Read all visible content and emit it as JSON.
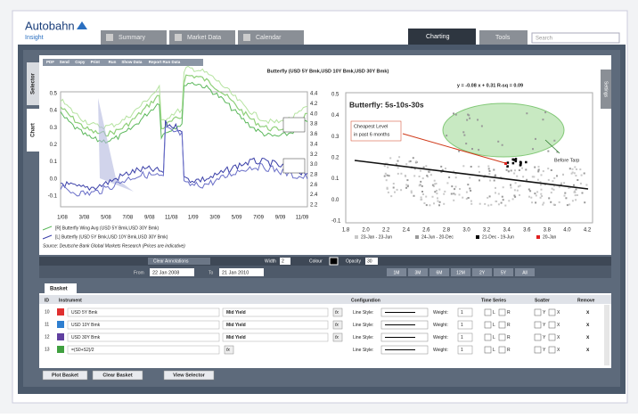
{
  "header": {
    "logo": "Autobahn",
    "sub": "Insight",
    "tabs": [
      "Summary",
      "Market Data",
      "Calendar"
    ],
    "active_tab": "Charting",
    "tools_tab": "Tools",
    "search": "Search"
  },
  "side_tabs": [
    "Selector",
    "Chart"
  ],
  "settings_tab": "Settings",
  "toolbar": [
    "PDF",
    "Send",
    "Copy",
    "Print",
    "Run",
    "Show Data",
    "Report Run Data"
  ],
  "chart": {
    "title": "Butterfly (USD 5Y Bmk,USD 10Y Bmk,USD 30Y Bmk)",
    "left_yticks": [
      "0.5",
      "0.4",
      "0.3",
      "0.2",
      "0.1",
      "0.0",
      "-0.1"
    ],
    "right_yticks": [
      "4.4",
      "4.2",
      "4.0",
      "3.8",
      "3.6",
      "3.4",
      "3.2",
      "3.0",
      "2.8",
      "2.6",
      "2.4",
      "2.2"
    ],
    "xticks": [
      "1/08",
      "3/08",
      "5/08",
      "7/08",
      "9/08",
      "11/08",
      "1/09",
      "3/09",
      "5/09",
      "7/09",
      "9/09",
      "11/09"
    ],
    "legend": [
      "[R] Butterfly Wing Avg (USD 5Y Bmk,USD 30Y Bmk)",
      "[L] Butterfly (USD 5Y Bmk,USD 10Y Bmk,USD 30Y Bmk)"
    ],
    "source": "Source: Deutsche Bank Global Markets Research (Prices are indicative)"
  },
  "scatter": {
    "formula": "y = -0.08 x + 0.31   R-sq = 0.09",
    "title": "Butterfly: 5s-10s-30s",
    "yticks": [
      "0.5",
      "0.4",
      "0.3",
      "0.2",
      "0.1",
      "0.0",
      "-0.1"
    ],
    "xticks": [
      "1.8",
      "2.0",
      "2.2",
      "2.4",
      "2.6",
      "2.8",
      "3.0",
      "3.2",
      "3.4",
      "3.6",
      "3.8",
      "4.0",
      "4.2"
    ],
    "annotations": [
      "Cheapest Level",
      "in past 6 months",
      "Before Tarp"
    ],
    "legend": [
      "23-Jan - 23-Jun",
      "24-Jun - 20-Dec",
      "21-Dec - 19-Jun",
      "20-Jan"
    ]
  },
  "controls": {
    "clear": "Clear Annotations",
    "width_label": "Width",
    "width": "2",
    "colour": "Colour",
    "opacity_label": "Opacity",
    "opacity": "30",
    "from_label": "From",
    "from": "22 Jan 2008",
    "to_label": "To",
    "to": "21 Jan 2010",
    "ranges": [
      "1M",
      "3M",
      "6M",
      "12M",
      "2Y",
      "5Y",
      "All"
    ]
  },
  "basket": {
    "tab": "Basket",
    "headers": [
      "ID",
      "Instrument",
      "Configuration",
      "Time Series",
      "Scatter",
      "Remove"
    ],
    "rows": [
      {
        "id": "10",
        "instrument": "USD 5Y Bmk",
        "field": "Mid Yield"
      },
      {
        "id": "11",
        "instrument": "USD 10Y Bmk",
        "field": "Mid Yield"
      },
      {
        "id": "12",
        "instrument": "USD 30Y Bmk",
        "field": "Mid Yield"
      },
      {
        "id": "13",
        "instrument": "=(S0+S2)/2"
      }
    ],
    "fx": "fx",
    "line_style": "Line Style:",
    "weight_label": "Weight:",
    "weight": "1",
    "ts": [
      "L",
      "R"
    ],
    "sc": [
      "Y",
      "X"
    ],
    "remove": "x",
    "buttons": [
      "Plot Basket",
      "Clear Basket",
      "View Selector"
    ]
  }
}
